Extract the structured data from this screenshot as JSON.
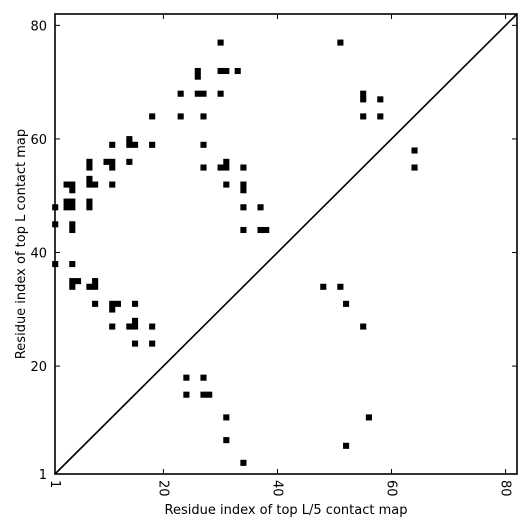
{
  "chart_data": {
    "type": "heatmap",
    "xlabel": "Residue index of top L/5 contact map",
    "ylabel": "Residue index of top L contact map",
    "xlim": [
      1,
      82
    ],
    "ylim": [
      1,
      82
    ],
    "x_ticks": [
      1,
      20,
      40,
      60,
      80
    ],
    "y_ticks": [
      1,
      20,
      40,
      60,
      80
    ],
    "x_tick_labels": [
      "1",
      "20",
      "40",
      "60",
      "80"
    ],
    "y_tick_labels": [
      "1",
      "20",
      "40",
      "60",
      "80"
    ],
    "diagonal": true,
    "cell_color": "#000000",
    "upper_contacts": [
      [
        30,
        77
      ],
      [
        26,
        72
      ],
      [
        26,
        71
      ],
      [
        30,
        72
      ],
      [
        31,
        72
      ],
      [
        33,
        72
      ],
      [
        23,
        68
      ],
      [
        26,
        68
      ],
      [
        27,
        68
      ],
      [
        30,
        68
      ],
      [
        23,
        64
      ],
      [
        27,
        64
      ],
      [
        18,
        64
      ],
      [
        14,
        60
      ],
      [
        14,
        59
      ],
      [
        15,
        59
      ],
      [
        11,
        59
      ],
      [
        18,
        59
      ],
      [
        27,
        59
      ],
      [
        10,
        56
      ],
      [
        11,
        56
      ],
      [
        14,
        56
      ],
      [
        7,
        56
      ],
      [
        7,
        55
      ],
      [
        11,
        55
      ],
      [
        27,
        55
      ],
      [
        30,
        55
      ],
      [
        31,
        55
      ],
      [
        31,
        56
      ],
      [
        34,
        55
      ],
      [
        7,
        53
      ],
      [
        7,
        52
      ],
      [
        8,
        52
      ],
      [
        11,
        52
      ],
      [
        31,
        52
      ],
      [
        34,
        52
      ],
      [
        34,
        51
      ],
      [
        3,
        52
      ],
      [
        4,
        52
      ],
      [
        4,
        51
      ],
      [
        3,
        49
      ],
      [
        4,
        49
      ],
      [
        3,
        48
      ],
      [
        4,
        48
      ],
      [
        7,
        49
      ],
      [
        7,
        48
      ],
      [
        1,
        48
      ],
      [
        34,
        48
      ],
      [
        37,
        48
      ],
      [
        1,
        45
      ],
      [
        4,
        45
      ],
      [
        4,
        44
      ],
      [
        34,
        44
      ],
      [
        37,
        44
      ],
      [
        38,
        44
      ],
      [
        1,
        38
      ],
      [
        4,
        38
      ]
    ],
    "lower_contacts": [
      [
        51,
        77
      ],
      [
        55,
        68
      ],
      [
        55,
        67
      ],
      [
        58,
        67
      ],
      [
        55,
        64
      ],
      [
        58,
        64
      ],
      [
        64,
        58
      ],
      [
        64,
        55
      ],
      [
        4,
        35
      ],
      [
        5,
        35
      ],
      [
        8,
        35
      ],
      [
        4,
        34
      ],
      [
        7,
        34
      ],
      [
        8,
        34
      ],
      [
        48,
        34
      ],
      [
        51,
        34
      ],
      [
        8,
        31
      ],
      [
        11,
        31
      ],
      [
        12,
        31
      ],
      [
        15,
        31
      ],
      [
        52,
        31
      ],
      [
        11,
        30
      ],
      [
        15,
        28
      ],
      [
        11,
        27
      ],
      [
        14,
        27
      ],
      [
        15,
        27
      ],
      [
        18,
        27
      ],
      [
        55,
        27
      ],
      [
        15,
        24
      ],
      [
        18,
        24
      ],
      [
        24,
        18
      ],
      [
        27,
        18
      ],
      [
        24,
        15
      ],
      [
        27,
        15
      ],
      [
        28,
        15
      ],
      [
        31,
        11
      ],
      [
        56,
        11
      ],
      [
        31,
        7
      ],
      [
        52,
        6
      ],
      [
        34,
        3
      ]
    ]
  }
}
